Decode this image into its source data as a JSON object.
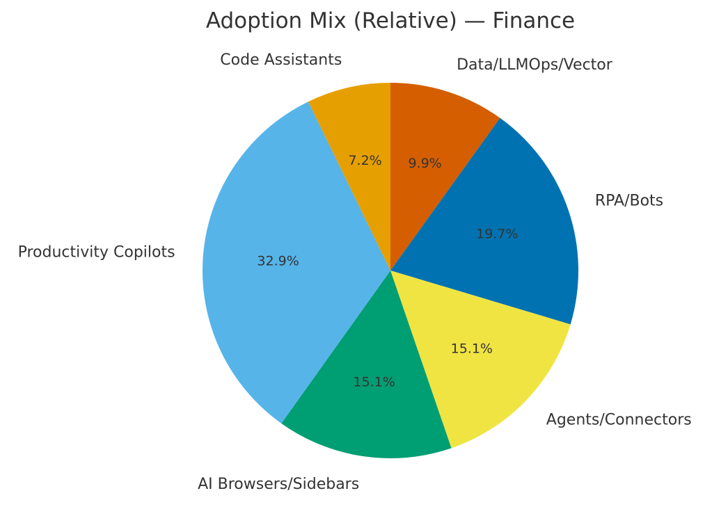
{
  "chart_data": {
    "type": "pie",
    "title": "Adoption Mix (Relative) — Finance",
    "start_angle_deg": 90,
    "direction": "clockwise",
    "slices": [
      {
        "label": "Data/LLMOps/Vector",
        "value": 9.9,
        "pct_label": "9.9%",
        "color": "#D55E00"
      },
      {
        "label": "RPA/Bots",
        "value": 19.7,
        "pct_label": "19.7%",
        "color": "#0072B2"
      },
      {
        "label": "Agents/Connectors",
        "value": 15.1,
        "pct_label": "15.1%",
        "color": "#F0E442"
      },
      {
        "label": "AI Browsers/Sidebars",
        "value": 15.1,
        "pct_label": "15.1%",
        "color": "#009E73"
      },
      {
        "label": "Productivity Copilots",
        "value": 32.9,
        "pct_label": "32.9%",
        "color": "#56B4E9"
      },
      {
        "label": "Code Assistants",
        "value": 7.2,
        "pct_label": "7.2%",
        "color": "#E69F00"
      }
    ]
  }
}
